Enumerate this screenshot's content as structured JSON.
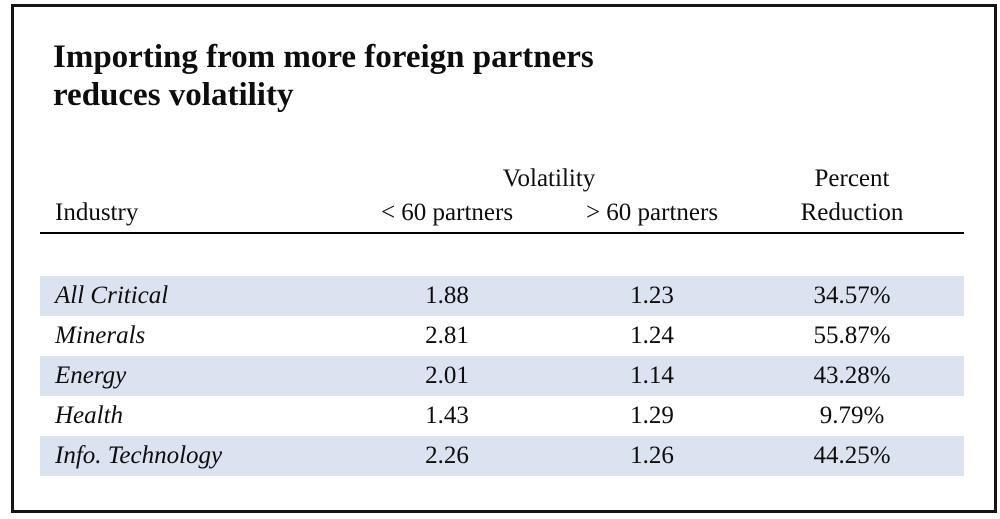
{
  "figure": {
    "title_line1": "Importing from more foreign partners",
    "title_line2": "reduces volatility"
  },
  "colors": {
    "row_shade": "#dbe2f0",
    "frame_border": "#151515",
    "rule": "#000000"
  },
  "table": {
    "group_headers": {
      "volatility": "Volatility",
      "percent": "Percent"
    },
    "col_headers": {
      "industry": "Industry",
      "lt60": "< 60 partners",
      "gt60": "> 60 partners",
      "reduction": "Reduction"
    },
    "rows": [
      {
        "industry": "All Critical",
        "lt60": "1.88",
        "gt60": "1.23",
        "reduction": "34.57%"
      },
      {
        "industry": "Minerals",
        "lt60": "2.81",
        "gt60": "1.24",
        "reduction": "55.87%"
      },
      {
        "industry": "Energy",
        "lt60": "2.01",
        "gt60": "1.14",
        "reduction": "43.28%"
      },
      {
        "industry": "Health",
        "lt60": "1.43",
        "gt60": "1.29",
        "reduction": "9.79%"
      },
      {
        "industry": "Info. Technology",
        "lt60": "2.26",
        "gt60": "1.26",
        "reduction": "44.25%"
      }
    ]
  },
  "chart_data": {
    "type": "table",
    "title": "Importing from more foreign partners reduces volatility",
    "columns": [
      "Industry",
      "Volatility < 60 partners",
      "Volatility > 60 partners",
      "Percent Reduction"
    ],
    "rows": [
      [
        "All Critical",
        1.88,
        1.23,
        "34.57%"
      ],
      [
        "Minerals",
        2.81,
        1.24,
        "55.87%"
      ],
      [
        "Energy",
        2.01,
        1.14,
        "43.28%"
      ],
      [
        "Health",
        1.43,
        1.29,
        "9.79%"
      ],
      [
        "Info. Technology",
        2.26,
        1.26,
        "44.25%"
      ]
    ],
    "notes": "Shaded rows alternate starting with first data row; horizontal rule under column headers; whole figure enclosed in black border."
  }
}
